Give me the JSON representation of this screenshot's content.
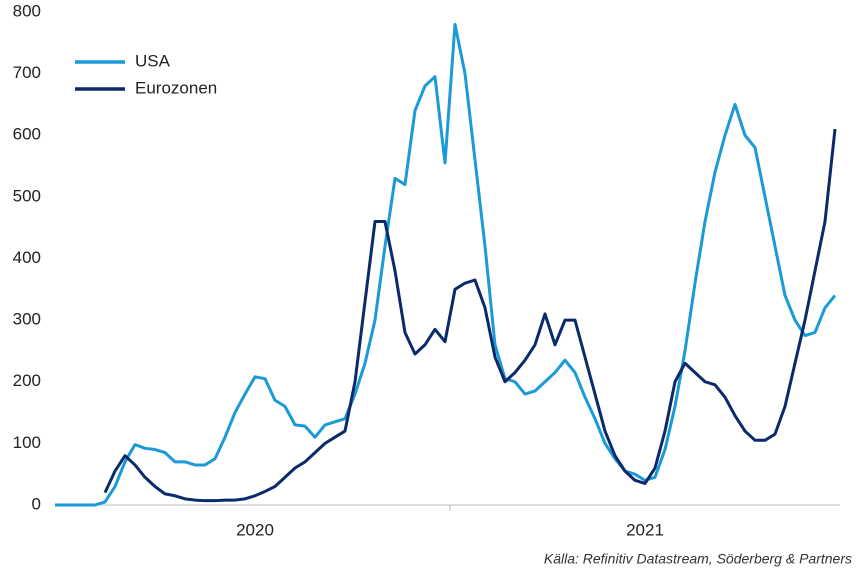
{
  "chart_data": {
    "type": "line",
    "source": "Källa: Refinitiv Datastream, Söderberg & Partners",
    "categories": [
      null,
      null,
      null,
      null,
      null,
      null,
      null,
      null,
      null,
      null,
      null,
      null,
      null,
      null,
      null,
      null,
      null,
      null,
      null,
      null,
      "2020",
      null,
      null,
      null,
      null,
      null,
      null,
      null,
      null,
      null,
      null,
      null,
      null,
      null,
      null,
      null,
      null,
      null,
      null,
      null,
      null,
      null,
      null,
      null,
      null,
      null,
      null,
      null,
      null,
      null,
      null,
      null,
      null,
      null,
      null,
      null,
      null,
      null,
      null,
      "2021",
      null,
      null,
      null,
      null,
      null,
      null,
      null,
      null,
      null,
      null,
      null,
      null,
      null,
      null,
      null,
      null,
      null,
      null,
      null
    ],
    "series": [
      {
        "name": "USA",
        "color": "#1a9ad6",
        "values": [
          0,
          0,
          0,
          0,
          0,
          5,
          30,
          70,
          98,
          92,
          90,
          85,
          70,
          70,
          65,
          65,
          75,
          110,
          150,
          180,
          208,
          205,
          170,
          160,
          130,
          128,
          110,
          130,
          135,
          140,
          180,
          230,
          300,
          420,
          530,
          520,
          640,
          680,
          695,
          555,
          780,
          700,
          560,
          420,
          260,
          205,
          200,
          180,
          185,
          200,
          215,
          235,
          215,
          175,
          140,
          100,
          75,
          55,
          50,
          40,
          45,
          90,
          160,
          250,
          360,
          460,
          540,
          600,
          650,
          600,
          580,
          500,
          420,
          340,
          300,
          275,
          280,
          320,
          340
        ]
      },
      {
        "name": "Eurozonen",
        "color": "#0a2a6b",
        "values": [
          null,
          null,
          null,
          null,
          null,
          20,
          55,
          80,
          65,
          45,
          30,
          18,
          15,
          10,
          8,
          7,
          7,
          8,
          8,
          10,
          15,
          22,
          30,
          45,
          60,
          70,
          85,
          100,
          110,
          120,
          200,
          330,
          460,
          460,
          380,
          280,
          245,
          260,
          285,
          265,
          350,
          360,
          365,
          320,
          240,
          200,
          215,
          235,
          260,
          310,
          260,
          300,
          300,
          240,
          180,
          120,
          80,
          55,
          40,
          35,
          60,
          120,
          200,
          230,
          215,
          200,
          195,
          175,
          145,
          120,
          105,
          105,
          115,
          160,
          230,
          300,
          380,
          460,
          610
        ]
      }
    ],
    "ylim": [
      0,
      800
    ],
    "yticks": [
      0,
      100,
      200,
      300,
      400,
      500,
      600,
      700,
      800
    ],
    "legend": "top-left"
  }
}
